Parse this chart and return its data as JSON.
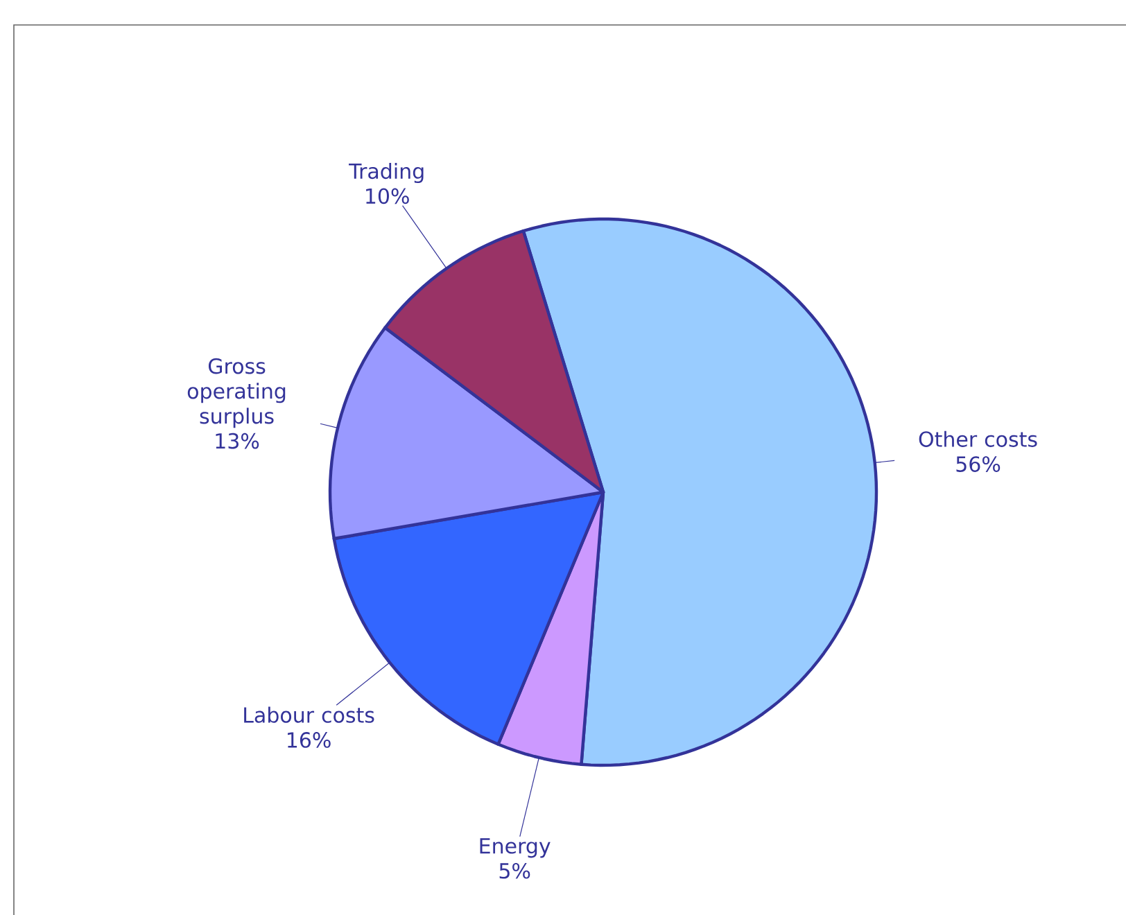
{
  "chart_data": {
    "type": "pie",
    "categories": [
      "Other costs",
      "Energy",
      "Labour costs",
      "Gross operating surplus",
      "Trading"
    ],
    "values": [
      56,
      5,
      16,
      13,
      10
    ],
    "colors": [
      "#99ccff",
      "#cc99ff",
      "#3366ff",
      "#9999ff",
      "#993366"
    ],
    "value_labels": [
      "56%",
      "5%",
      "16%",
      "13%",
      "10%"
    ]
  }
}
